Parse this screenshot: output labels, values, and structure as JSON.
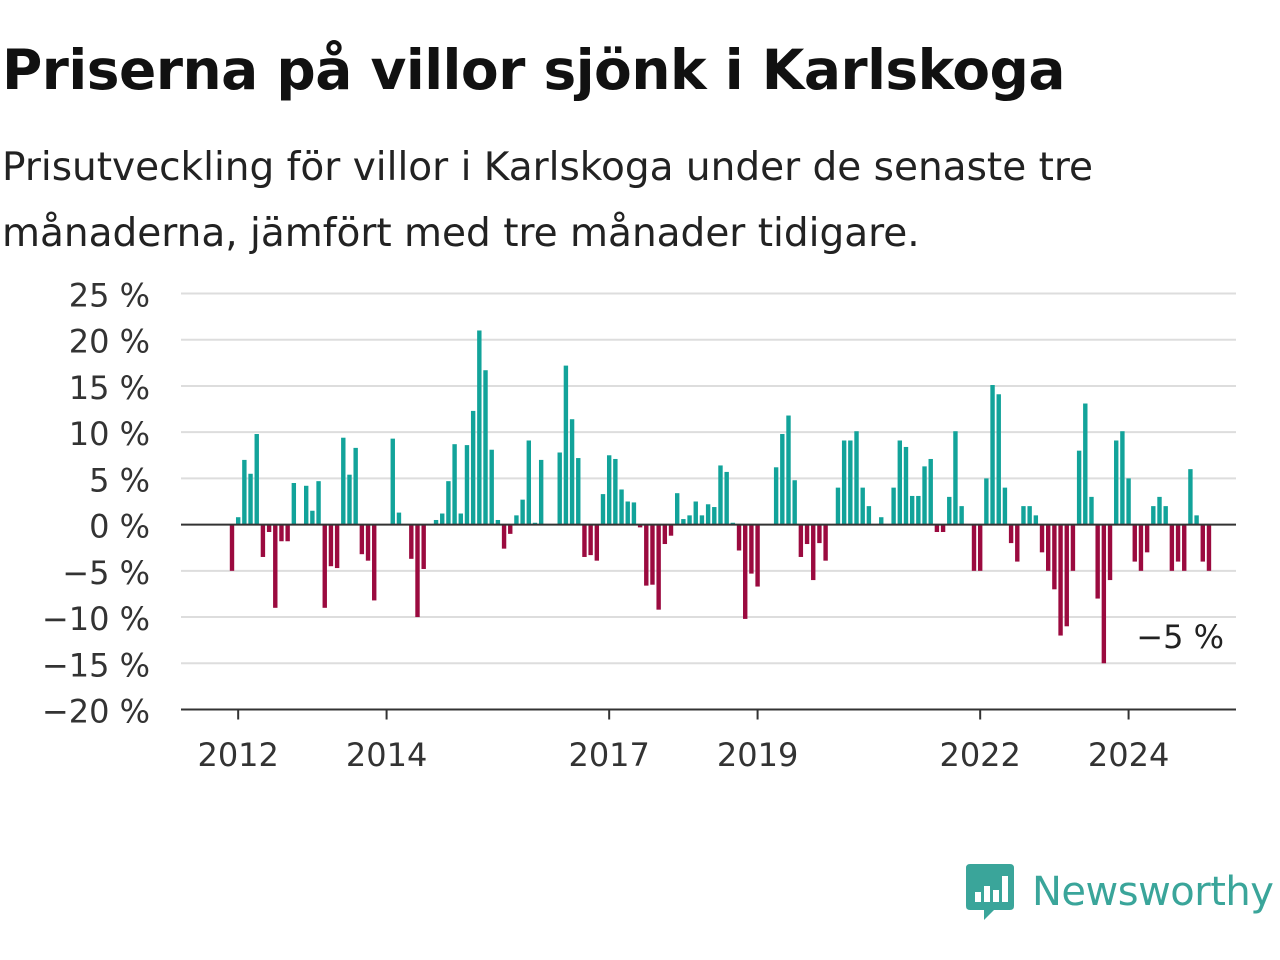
{
  "title": "Priserna på villor sjönk i Karlskoga",
  "subtitle": "Prisutveckling för villor i Karlskoga under de senaste tre månaderna, jämfört med tre månader tidigare.",
  "brand": {
    "name": "Newsworthy",
    "color": "#3aa59a",
    "icon": "newsworthy-logo-icon"
  },
  "colors": {
    "positive": "#12a39a",
    "negative": "#9b0a3f",
    "grid": "#dddddd",
    "axis": "#333333"
  },
  "chart_data": {
    "type": "bar",
    "unit": "%",
    "ylim": [
      -20,
      25
    ],
    "yticks": [
      25,
      20,
      15,
      10,
      5,
      0,
      -5,
      -10,
      -15,
      -20
    ],
    "ytick_labels": [
      "25 %",
      "20 %",
      "15 %",
      "10 %",
      "5 %",
      "0 %",
      "−5 %",
      "−10 %",
      "−15 %",
      "−20 %"
    ],
    "xticks": [
      2012,
      2014,
      2017,
      2019,
      2022,
      2024
    ],
    "xtick_labels": [
      "2012",
      "2014",
      "2017",
      "2019",
      "2022",
      "2024"
    ],
    "x_start": "2011-12",
    "last_value_label": "−5 %",
    "grid": true,
    "values": [
      -5,
      0.8,
      7,
      5.5,
      9.8,
      -3.5,
      -0.8,
      -9,
      -1.8,
      -1.8,
      4.5,
      0,
      4.2,
      1.5,
      4.7,
      -9,
      -4.5,
      -4.7,
      9.4,
      5.4,
      8.3,
      -3.2,
      -3.9,
      -8.2,
      0,
      0,
      9.3,
      1.3,
      0,
      -3.7,
      -10,
      -4.8,
      0,
      0.5,
      1.2,
      4.7,
      8.7,
      1.2,
      8.6,
      12.3,
      21,
      16.7,
      8.1,
      0.5,
      -2.6,
      -1,
      1,
      2.7,
      9.1,
      0.2,
      7,
      0,
      0,
      7.8,
      17.2,
      11.4,
      7.2,
      -3.5,
      -3.3,
      -3.9,
      3.3,
      7.5,
      7.1,
      3.8,
      2.5,
      2.4,
      -0.3,
      -6.6,
      -6.5,
      -9.2,
      -2.1,
      -1.2,
      3.4,
      0.6,
      1,
      2.5,
      1,
      2.2,
      1.9,
      6.4,
      5.7,
      0.2,
      -2.8,
      -10.2,
      -5.3,
      -6.7,
      0,
      0,
      6.2,
      9.8,
      11.8,
      4.8,
      -3.5,
      -2.1,
      -6,
      -2,
      -3.9,
      0,
      4,
      9.1,
      9.1,
      10.1,
      4,
      2,
      0,
      0.8,
      0,
      4,
      9.1,
      8.4,
      3.1,
      3.1,
      6.3,
      7.1,
      -0.8,
      -0.8,
      3,
      10.1,
      2,
      0,
      -5,
      -5,
      5,
      15.1,
      14.1,
      4,
      -2,
      -4,
      2,
      2,
      1,
      -3,
      -5,
      -7,
      -12,
      -11,
      -5,
      8,
      13.1,
      3,
      -8,
      -15,
      -6,
      9.1,
      10.1,
      5,
      -4,
      -5,
      -3,
      2,
      3,
      2,
      -5,
      -4,
      -5,
      6,
      1,
      -4,
      -5
    ]
  }
}
